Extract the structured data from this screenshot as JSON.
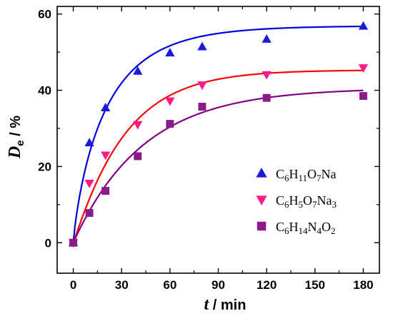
{
  "chart_data": {
    "type": "scatter",
    "xlabel": {
      "italic": "t",
      "rest": " / min"
    },
    "ylabel": {
      "italic": "D",
      "sub": "e",
      "rest": " / %"
    },
    "xlim": [
      -10,
      190
    ],
    "ylim": [
      -8,
      62
    ],
    "xticks": [
      0,
      30,
      60,
      90,
      120,
      150,
      180
    ],
    "yticks": [
      0,
      20,
      40,
      60
    ],
    "legend_position": "center-right",
    "series": [
      {
        "name": "C6H11O7Na",
        "name_parts": [
          [
            "C",
            ""
          ],
          [
            "6",
            "sub"
          ],
          [
            "H",
            ""
          ],
          [
            "11",
            "sub"
          ],
          [
            "O",
            ""
          ],
          [
            "7",
            "sub"
          ],
          [
            "Na",
            ""
          ]
        ],
        "marker": "triangle-up",
        "color": "#1a1adf",
        "x": [
          0,
          10,
          20,
          40,
          60,
          80,
          120,
          180
        ],
        "y": [
          0,
          26.2,
          35.4,
          45.0,
          49.8,
          51.4,
          53.4,
          56.8
        ],
        "fit": {
          "ymax": 56.9,
          "k": 0.047,
          "p": 0.84
        }
      },
      {
        "name": "C6H5O7Na3",
        "name_parts": [
          [
            "C",
            ""
          ],
          [
            "6",
            "sub"
          ],
          [
            "H",
            ""
          ],
          [
            "5",
            "sub"
          ],
          [
            "O",
            ""
          ],
          [
            "7",
            "sub"
          ],
          [
            "Na",
            ""
          ],
          [
            "3",
            "sub"
          ]
        ],
        "marker": "triangle-down",
        "color": "#ff1a8c",
        "x": [
          0,
          10,
          20,
          40,
          60,
          80,
          120,
          180
        ],
        "y": [
          0,
          15.6,
          23.0,
          31.0,
          37.2,
          41.4,
          44.1,
          45.9
        ],
        "fit": {
          "ymax": 45.3,
          "k": 0.031,
          "p": 1.05
        }
      },
      {
        "name": "C6H14N4O2",
        "name_parts": [
          [
            "C",
            ""
          ],
          [
            "6",
            "sub"
          ],
          [
            "H",
            ""
          ],
          [
            "14",
            "sub"
          ],
          [
            "N",
            ""
          ],
          [
            "4",
            "sub"
          ],
          [
            "O",
            ""
          ],
          [
            "2",
            "sub"
          ]
        ],
        "marker": "square",
        "color": "#8b1a8b",
        "x": [
          0,
          10,
          20,
          40,
          60,
          80,
          120,
          180
        ],
        "y": [
          0,
          7.8,
          13.6,
          22.7,
          31.2,
          35.7,
          38.0,
          38.5
        ],
        "fit": {
          "ymax": 40.6,
          "k": 0.023,
          "p": 1.0
        }
      }
    ],
    "fit_colors": [
      "#0000dd",
      "#ff0000",
      "#800080"
    ]
  }
}
